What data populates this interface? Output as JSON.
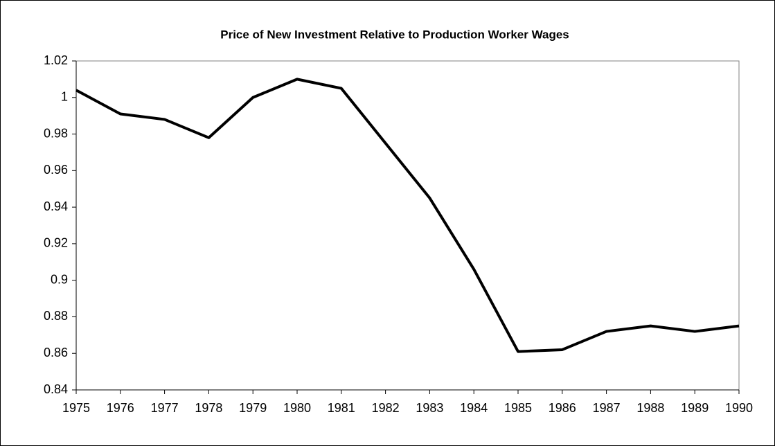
{
  "chart_data": {
    "type": "line",
    "title": "Price of New Investment Relative to Production Worker Wages",
    "x": [
      1975,
      1976,
      1977,
      1978,
      1979,
      1980,
      1981,
      1982,
      1983,
      1984,
      1985,
      1986,
      1987,
      1988,
      1989,
      1990
    ],
    "values": [
      1.004,
      0.991,
      0.988,
      0.978,
      1.0,
      1.01,
      1.005,
      0.975,
      0.945,
      0.906,
      0.861,
      0.862,
      0.872,
      0.875,
      0.872,
      0.875
    ],
    "color": "#000000",
    "xlim": [
      1975,
      1990
    ],
    "xticks": [
      1975,
      1976,
      1977,
      1978,
      1979,
      1980,
      1981,
      1982,
      1983,
      1984,
      1985,
      1986,
      1987,
      1988,
      1989,
      1990
    ],
    "ylim": [
      0.84,
      1.02
    ],
    "yticks": [
      0.84,
      0.86,
      0.88,
      0.9,
      0.92,
      0.94,
      0.96,
      0.98,
      1,
      1.02
    ],
    "grid": false
  }
}
